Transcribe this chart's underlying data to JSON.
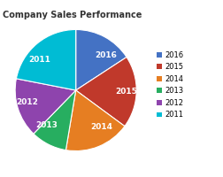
{
  "title": "Company Sales Performance",
  "labels": [
    "2016",
    "2015",
    "2014",
    "2013",
    "2012",
    "2011"
  ],
  "values": [
    18,
    22,
    20,
    11,
    18,
    25
  ],
  "colors": [
    "#4472c4",
    "#c0392b",
    "#e67e22",
    "#27ae60",
    "#8e44ad",
    "#00bcd4"
  ],
  "label_color": "#ffffff",
  "bg_color": "#ffffff",
  "title_fontsize": 7,
  "label_fontsize": 6.5,
  "legend_fontsize": 6,
  "startangle": 90
}
